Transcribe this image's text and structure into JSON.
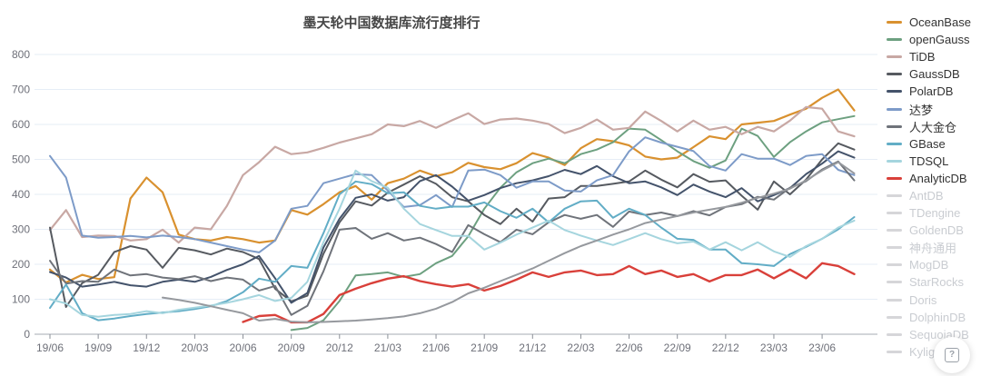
{
  "title": "墨天轮中国数据库流行度排行",
  "help_button": {
    "glyph": "?"
  },
  "legend": {
    "items": [
      {
        "label": "OceanBase",
        "color": "#d9912f",
        "active": true
      },
      {
        "label": "openGauss",
        "color": "#6da080",
        "active": true
      },
      {
        "label": "TiDB",
        "color": "#c8a8a4",
        "active": true
      },
      {
        "label": "GaussDB",
        "color": "#565a60",
        "active": true
      },
      {
        "label": "PolarDB",
        "color": "#44536b",
        "active": true
      },
      {
        "label": "达梦",
        "color": "#7d9bc8",
        "active": true
      },
      {
        "label": "人大金仓",
        "color": "#6f737a",
        "active": true
      },
      {
        "label": "GBase",
        "color": "#62adc6",
        "active": true
      },
      {
        "label": "TDSQL",
        "color": "#a5d5de",
        "active": true
      },
      {
        "label": "AnalyticDB",
        "color": "#d9403a",
        "active": true
      },
      {
        "label": "AntDB",
        "color": "#d6d6d9",
        "active": false
      },
      {
        "label": "TDengine",
        "color": "#d6d6d9",
        "active": false
      },
      {
        "label": "GoldenDB",
        "color": "#d6d6d9",
        "active": false
      },
      {
        "label": "神舟通用",
        "color": "#d6d6d9",
        "active": false
      },
      {
        "label": "MogDB",
        "color": "#d6d6d9",
        "active": false
      },
      {
        "label": "StarRocks",
        "color": "#d6d6d9",
        "active": false
      },
      {
        "label": "Doris",
        "color": "#d6d6d9",
        "active": false
      },
      {
        "label": "DolphinDB",
        "color": "#d6d6d9",
        "active": false
      },
      {
        "label": "SequoiaDB",
        "color": "#d6d6d9",
        "active": false
      },
      {
        "label": "Kyligence",
        "color": "#d6d6d9",
        "active": false
      }
    ]
  },
  "chart_data": {
    "type": "line",
    "title": "墨天轮中国数据库流行度排行",
    "xlabel": "",
    "ylabel": "",
    "ylim": [
      0,
      800
    ],
    "y_ticks": [
      0,
      100,
      200,
      300,
      400,
      500,
      600,
      700,
      800
    ],
    "grid": true,
    "legend_position": "right",
    "x": [
      "19/06",
      "19/07",
      "19/08",
      "19/09",
      "19/10",
      "19/11",
      "19/12",
      "20/01",
      "20/02",
      "20/03",
      "20/04",
      "20/05",
      "20/06",
      "20/07",
      "20/08",
      "20/09",
      "20/10",
      "20/11",
      "20/12",
      "21/01",
      "21/02",
      "21/03",
      "21/04",
      "21/05",
      "21/06",
      "21/07",
      "21/08",
      "21/09",
      "21/10",
      "21/11",
      "21/12",
      "22/01",
      "22/02",
      "22/03",
      "22/04",
      "22/05",
      "22/06",
      "22/07",
      "22/08",
      "22/09",
      "22/10",
      "22/11",
      "22/12",
      "23/01",
      "23/02",
      "23/03",
      "23/04",
      "23/05",
      "23/06",
      "23/07",
      "23/08"
    ],
    "x_tick_every": 3,
    "x_last_tick_index": 48,
    "series": [
      {
        "name": "OceanBase",
        "color": "#d9912f",
        "width": 2.2,
        "values": [
          185,
          148,
          170,
          158,
          163,
          388,
          448,
          406,
          285,
          272,
          268,
          278,
          272,
          262,
          268,
          355,
          342,
          372,
          406,
          424,
          385,
          432,
          445,
          468,
          452,
          463,
          490,
          478,
          472,
          489,
          518,
          505,
          484,
          532,
          558,
          552,
          540,
          508,
          500,
          505,
          535,
          566,
          558,
          600,
          605,
          610,
          628,
          645,
          676,
          700,
          640
        ]
      },
      {
        "name": "openGauss",
        "color": "#6da080",
        "width": 2,
        "values": [
          null,
          null,
          null,
          null,
          null,
          null,
          null,
          null,
          null,
          null,
          null,
          null,
          null,
          null,
          null,
          12,
          18,
          40,
          95,
          168,
          172,
          177,
          164,
          172,
          203,
          224,
          280,
          359,
          419,
          463,
          489,
          502,
          489,
          515,
          528,
          549,
          588,
          585,
          555,
          523,
          495,
          476,
          497,
          588,
          567,
          507,
          549,
          580,
          606,
          615,
          624
        ]
      },
      {
        "name": "TiDB",
        "color": "#c8a8a4",
        "width": 2.2,
        "values": [
          298,
          355,
          278,
          282,
          281,
          268,
          272,
          299,
          262,
          305,
          300,
          367,
          455,
          492,
          536,
          515,
          520,
          533,
          548,
          560,
          572,
          600,
          595,
          610,
          590,
          612,
          632,
          601,
          614,
          617,
          611,
          601,
          575,
          590,
          614,
          585,
          590,
          637,
          610,
          580,
          611,
          585,
          593,
          572,
          593,
          580,
          611,
          650,
          645,
          580,
          566
        ]
      },
      {
        "name": "GaussDB",
        "color": "#565a60",
        "width": 2,
        "values": [
          305,
          78,
          146,
          170,
          235,
          252,
          242,
          190,
          247,
          240,
          228,
          245,
          235,
          215,
          130,
          94,
          110,
          230,
          320,
          380,
          368,
          405,
          428,
          452,
          430,
          392,
          380,
          341,
          315,
          359,
          322,
          388,
          392,
          424,
          424,
          430,
          437,
          468,
          442,
          420,
          458,
          436,
          440,
          396,
          356,
          437,
          400,
          442,
          500,
          546,
          528
        ]
      },
      {
        "name": "PolarDB",
        "color": "#44536b",
        "width": 2,
        "values": [
          178,
          162,
          136,
          142,
          150,
          140,
          136,
          150,
          156,
          150,
          164,
          184,
          200,
          224,
          160,
          90,
          118,
          248,
          330,
          390,
          400,
          382,
          392,
          438,
          455,
          422,
          382,
          398,
          418,
          432,
          440,
          452,
          470,
          458,
          481,
          452,
          432,
          437,
          420,
          398,
          428,
          408,
          392,
          418,
          380,
          398,
          418,
          458,
          488,
          523,
          505
        ]
      },
      {
        "name": "达梦",
        "color": "#7d9bc8",
        "width": 2,
        "values": [
          510,
          448,
          282,
          276,
          278,
          281,
          277,
          282,
          278,
          272,
          262,
          252,
          242,
          234,
          268,
          359,
          367,
          432,
          445,
          458,
          455,
          411,
          364,
          369,
          398,
          364,
          468,
          471,
          455,
          419,
          437,
          437,
          411,
          408,
          440,
          455,
          523,
          563,
          548,
          536,
          524,
          481,
          468,
          515,
          502,
          502,
          484,
          510,
          515,
          470,
          455
        ]
      },
      {
        "name": "人大金仓",
        "color": "#6f737a",
        "width": 2,
        "values": [
          210,
          145,
          152,
          150,
          185,
          168,
          172,
          162,
          158,
          166,
          152,
          162,
          156,
          125,
          138,
          55,
          81,
          180,
          299,
          304,
          273,
          289,
          268,
          276,
          258,
          235,
          312,
          286,
          263,
          299,
          286,
          320,
          341,
          330,
          341,
          307,
          351,
          341,
          348,
          338,
          352,
          340,
          364,
          372,
          393,
          385,
          419,
          438,
          471,
          494,
          440
        ]
      },
      {
        "name": "GBase",
        "color": "#62adc6",
        "width": 2,
        "values": [
          75,
          142,
          60,
          40,
          45,
          52,
          58,
          62,
          66,
          72,
          80,
          95,
          120,
          159,
          150,
          195,
          190,
          289,
          400,
          437,
          429,
          403,
          406,
          367,
          359,
          365,
          365,
          377,
          352,
          333,
          359,
          320,
          359,
          380,
          382,
          333,
          359,
          341,
          305,
          273,
          270,
          242,
          242,
          203,
          200,
          195,
          229,
          250,
          273,
          300,
          335
        ]
      },
      {
        "name": "TDSQL",
        "color": "#a5d5de",
        "width": 2,
        "values": [
          100,
          88,
          55,
          50,
          55,
          58,
          66,
          60,
          70,
          76,
          82,
          90,
          100,
          112,
          95,
          104,
          150,
          263,
          359,
          468,
          438,
          419,
          359,
          315,
          298,
          281,
          281,
          242,
          262,
          285,
          305,
          325,
          298,
          282,
          268,
          255,
          272,
          289,
          272,
          260,
          265,
          242,
          263,
          240,
          263,
          237,
          221,
          252,
          273,
          305,
          325
        ]
      },
      {
        "name": "AnalyticDB",
        "color": "#d9403a",
        "width": 2.4,
        "values": [
          null,
          null,
          null,
          null,
          null,
          null,
          null,
          null,
          null,
          null,
          null,
          null,
          35,
          52,
          55,
          34,
          34,
          58,
          112,
          130,
          146,
          159,
          166,
          152,
          143,
          136,
          143,
          125,
          138,
          156,
          177,
          164,
          177,
          182,
          169,
          172,
          195,
          172,
          182,
          164,
          172,
          151,
          169,
          169,
          185,
          160,
          185,
          160,
          203,
          195,
          172
        ]
      },
      {
        "name": "MogDB",
        "color": "#96999e",
        "width": 2,
        "values": [
          null,
          null,
          null,
          null,
          null,
          null,
          null,
          105,
          98,
          90,
          80,
          70,
          60,
          39,
          44,
          36,
          34,
          35,
          37,
          39,
          42,
          46,
          51,
          60,
          73,
          92,
          117,
          133,
          152,
          170,
          188,
          210,
          232,
          252,
          268,
          285,
          300,
          318,
          328,
          338,
          348,
          356,
          364,
          376,
          390,
          402,
          416,
          440,
          468,
          492,
          460
        ]
      }
    ]
  }
}
